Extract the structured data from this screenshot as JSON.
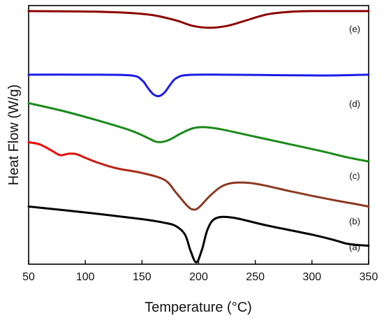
{
  "chart_data": {
    "type": "line",
    "title": "",
    "xlabel": "Temperature (°C)",
    "ylabel": "Heat Flow (W/g)",
    "xlim": [
      50,
      350
    ],
    "xticks": [
      50,
      100,
      150,
      200,
      250,
      300,
      350
    ],
    "y_ticks_shown": false,
    "grid": false,
    "legend": "none",
    "series": [
      {
        "name": "(a)",
        "color": "#000000",
        "x": [
          50,
          100,
          150,
          170,
          180,
          188,
          193,
          198,
          203,
          208,
          215,
          230,
          260,
          300,
          320,
          330,
          340,
          350
        ],
        "y": [
          1.56,
          1.4,
          1.22,
          1.12,
          1.03,
          0.8,
          0.35,
          0.05,
          0.4,
          0.95,
          1.24,
          1.26,
          1.05,
          0.8,
          0.65,
          0.56,
          0.52,
          0.5
        ]
      },
      {
        "name": "(b)",
        "color": "#ff0000",
        "color_end": "#8b3a1f",
        "x": [
          50,
          60,
          70,
          78,
          85,
          92,
          100,
          110,
          120,
          130,
          150,
          170,
          180,
          190,
          195,
          200,
          210,
          220,
          230,
          245,
          260,
          280,
          300,
          320,
          340,
          350
        ],
        "y": [
          3.3,
          3.24,
          3.08,
          2.95,
          2.99,
          2.98,
          2.88,
          2.76,
          2.66,
          2.58,
          2.47,
          2.28,
          1.94,
          1.58,
          1.48,
          1.53,
          1.85,
          2.1,
          2.2,
          2.2,
          2.12,
          1.98,
          1.85,
          1.73,
          1.62,
          1.56
        ]
      },
      {
        "name": "(c)",
        "color": "#1a8a1a",
        "x": [
          50,
          80,
          110,
          140,
          155,
          162,
          168,
          175,
          185,
          195,
          205,
          220,
          250,
          280,
          310,
          330,
          350
        ],
        "y": [
          4.36,
          4.15,
          3.9,
          3.62,
          3.42,
          3.32,
          3.31,
          3.38,
          3.55,
          3.68,
          3.71,
          3.65,
          3.45,
          3.25,
          3.05,
          2.9,
          2.78
        ]
      },
      {
        "name": "(d)",
        "color": "#1c1ce6",
        "x": [
          50,
          100,
          140,
          150,
          155,
          160,
          165,
          170,
          175,
          180,
          190,
          220,
          260,
          300,
          320,
          350
        ],
        "y": [
          5.13,
          5.13,
          5.11,
          4.98,
          4.78,
          4.6,
          4.55,
          4.65,
          4.86,
          5.03,
          5.12,
          5.13,
          5.12,
          5.11,
          5.11,
          5.13
        ]
      },
      {
        "name": "(e)",
        "color": "#8b0000",
        "x": [
          50,
          100,
          140,
          160,
          180,
          195,
          210,
          225,
          240,
          260,
          280,
          300,
          350
        ],
        "y": [
          6.85,
          6.84,
          6.8,
          6.74,
          6.6,
          6.45,
          6.4,
          6.45,
          6.58,
          6.76,
          6.83,
          6.85,
          6.85
        ]
      }
    ]
  }
}
